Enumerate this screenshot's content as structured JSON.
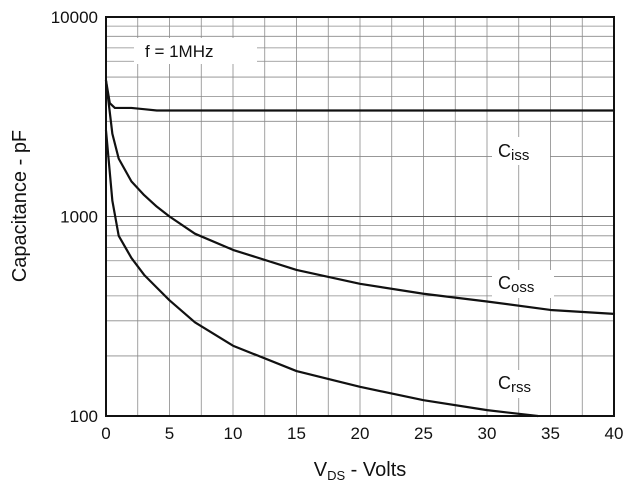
{
  "chart_data": {
    "type": "line",
    "title": "",
    "xlabel": {
      "main": "V",
      "sub": "DS",
      "rest": " - Volts"
    },
    "ylabel": "Capacitance - pF",
    "xlim": [
      0,
      40
    ],
    "ylim": [
      100,
      10000
    ],
    "y_scale": "log",
    "x_ticks": [
      "0",
      "5",
      "10",
      "15",
      "20",
      "25",
      "30",
      "35",
      "40"
    ],
    "y_ticks": [
      "100",
      "1000",
      "10000"
    ],
    "grid": true,
    "annotation": "f  = 1MHz",
    "series": [
      {
        "name": "Ciss",
        "label_main": "C",
        "label_sub": "iss",
        "color": "#111111",
        "x": [
          0,
          0.3,
          0.7,
          1,
          2,
          3,
          4,
          5,
          10,
          15,
          20,
          25,
          30,
          35,
          40
        ],
        "y": [
          4800,
          3700,
          3500,
          3500,
          3500,
          3450,
          3400,
          3400,
          3400,
          3400,
          3400,
          3400,
          3400,
          3400,
          3400
        ]
      },
      {
        "name": "Coss",
        "label_main": "C",
        "label_sub": "oss",
        "color": "#111111",
        "x": [
          0,
          0.5,
          1,
          2,
          3,
          4,
          5,
          7,
          10,
          15,
          20,
          25,
          30,
          35,
          40
        ],
        "y": [
          4800,
          2600,
          1950,
          1500,
          1280,
          1120,
          1000,
          820,
          680,
          540,
          460,
          410,
          375,
          340,
          325
        ]
      },
      {
        "name": "Crss",
        "label_main": "C",
        "label_sub": "rss",
        "color": "#111111",
        "x": [
          0,
          0.5,
          1,
          2,
          3,
          4,
          5,
          7,
          10,
          15,
          20,
          25,
          30,
          34
        ],
        "y": [
          2700,
          1200,
          800,
          620,
          510,
          440,
          380,
          295,
          225,
          168,
          140,
          120,
          107,
          100
        ]
      }
    ]
  }
}
